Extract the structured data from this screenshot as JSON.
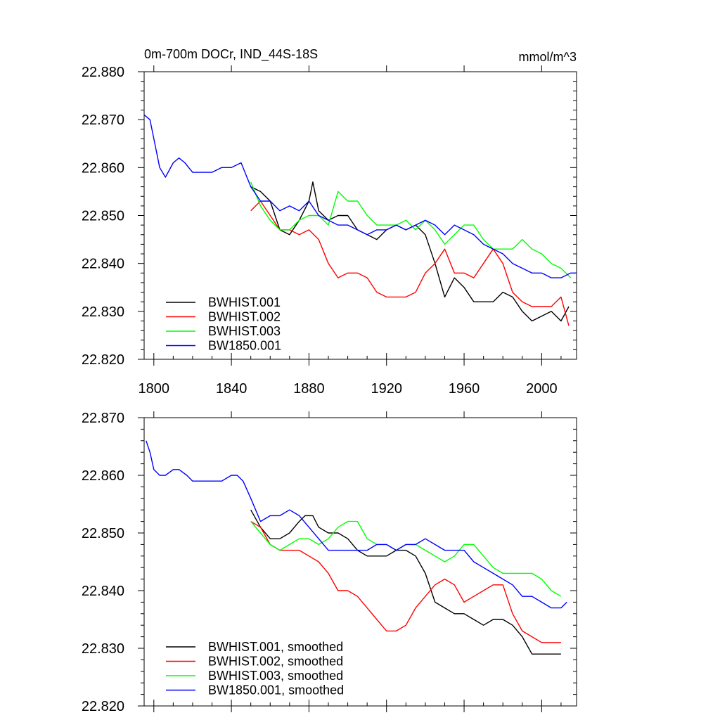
{
  "header": {
    "title": "0m-700m DOCr, IND_44S-18S",
    "units": "mmol/m^3"
  },
  "colors": {
    "BWHIST.001": "#000000",
    "BWHIST.002": "#ff0000",
    "BWHIST.003": "#00ff00",
    "BW1850.001": "#0000ff"
  },
  "chart_data": [
    {
      "type": "line",
      "title": "0m-700m DOCr, IND_44S-18S",
      "units": "mmol/m^3",
      "xlim": [
        1795,
        2018
      ],
      "ylim": [
        22.82,
        22.88
      ],
      "xticks": [
        1800,
        1840,
        1880,
        1920,
        1960,
        2000
      ],
      "xtick_labels": [
        "1800",
        "1840",
        "1880",
        "1920",
        "1960",
        "2000"
      ],
      "yticks": [
        22.82,
        22.83,
        22.84,
        22.85,
        22.86,
        22.87,
        22.88
      ],
      "ytick_labels": [
        "22.820",
        "22.830",
        "22.840",
        "22.850",
        "22.860",
        "22.870",
        "22.880"
      ],
      "legend_position": "bottom-left",
      "series": [
        {
          "name": "BWHIST.001",
          "color": "#000000",
          "x": [
            1850,
            1855,
            1860,
            1865,
            1870,
            1875,
            1880,
            1882,
            1885,
            1890,
            1895,
            1900,
            1905,
            1910,
            1915,
            1920,
            1925,
            1930,
            1935,
            1940,
            1945,
            1950,
            1955,
            1960,
            1965,
            1970,
            1975,
            1980,
            1985,
            1990,
            1995,
            2000,
            2005,
            2010,
            2014
          ],
          "y": [
            22.856,
            22.855,
            22.853,
            22.847,
            22.846,
            22.849,
            22.853,
            22.857,
            22.851,
            22.849,
            22.85,
            22.85,
            22.847,
            22.846,
            22.845,
            22.847,
            22.848,
            22.847,
            22.848,
            22.846,
            22.84,
            22.833,
            22.837,
            22.835,
            22.832,
            22.832,
            22.832,
            22.834,
            22.833,
            22.83,
            22.828,
            22.829,
            22.83,
            22.828,
            22.831
          ]
        },
        {
          "name": "BWHIST.002",
          "color": "#ff0000",
          "x": [
            1850,
            1855,
            1860,
            1865,
            1870,
            1875,
            1880,
            1885,
            1890,
            1895,
            1900,
            1905,
            1910,
            1915,
            1920,
            1925,
            1930,
            1935,
            1940,
            1945,
            1950,
            1955,
            1960,
            1965,
            1970,
            1975,
            1980,
            1985,
            1990,
            1995,
            2000,
            2005,
            2010,
            2014
          ],
          "y": [
            22.851,
            22.853,
            22.85,
            22.847,
            22.847,
            22.846,
            22.847,
            22.845,
            22.84,
            22.837,
            22.838,
            22.838,
            22.837,
            22.834,
            22.833,
            22.833,
            22.833,
            22.834,
            22.838,
            22.84,
            22.843,
            22.838,
            22.838,
            22.837,
            22.84,
            22.843,
            22.84,
            22.834,
            22.832,
            22.831,
            22.831,
            22.831,
            22.833,
            22.827
          ]
        },
        {
          "name": "BWHIST.003",
          "color": "#00ff00",
          "x": [
            1850,
            1855,
            1860,
            1865,
            1870,
            1875,
            1880,
            1885,
            1890,
            1895,
            1900,
            1905,
            1910,
            1915,
            1920,
            1925,
            1930,
            1935,
            1940,
            1945,
            1950,
            1955,
            1960,
            1965,
            1970,
            1975,
            1980,
            1985,
            1990,
            1995,
            2000,
            2005,
            2010,
            2015
          ],
          "y": [
            22.857,
            22.852,
            22.849,
            22.847,
            22.847,
            22.849,
            22.85,
            22.85,
            22.848,
            22.855,
            22.853,
            22.853,
            22.85,
            22.848,
            22.848,
            22.848,
            22.849,
            22.847,
            22.849,
            22.847,
            22.844,
            22.846,
            22.848,
            22.848,
            22.845,
            22.843,
            22.843,
            22.843,
            22.845,
            22.843,
            22.842,
            22.84,
            22.839,
            22.837
          ]
        },
        {
          "name": "BW1850.001",
          "color": "#0000ff",
          "x": [
            1795,
            1798,
            1800,
            1803,
            1806,
            1810,
            1813,
            1816,
            1820,
            1825,
            1830,
            1835,
            1840,
            1845,
            1850,
            1855,
            1860,
            1865,
            1870,
            1875,
            1880,
            1885,
            1890,
            1895,
            1900,
            1905,
            1910,
            1915,
            1920,
            1925,
            1930,
            1935,
            1940,
            1945,
            1950,
            1955,
            1960,
            1965,
            1970,
            1975,
            1980,
            1985,
            1990,
            1995,
            2000,
            2005,
            2010,
            2015,
            2018
          ],
          "y": [
            22.871,
            22.87,
            22.866,
            22.86,
            22.858,
            22.861,
            22.862,
            22.861,
            22.859,
            22.859,
            22.859,
            22.86,
            22.86,
            22.861,
            22.856,
            22.853,
            22.853,
            22.851,
            22.852,
            22.851,
            22.853,
            22.85,
            22.849,
            22.848,
            22.848,
            22.847,
            22.846,
            22.847,
            22.847,
            22.848,
            22.847,
            22.848,
            22.849,
            22.848,
            22.846,
            22.848,
            22.847,
            22.846,
            22.844,
            22.843,
            22.842,
            22.84,
            22.839,
            22.838,
            22.838,
            22.837,
            22.837,
            22.838,
            22.838
          ]
        }
      ]
    },
    {
      "type": "line",
      "title": "",
      "xlim": [
        1795,
        2018
      ],
      "ylim": [
        22.82,
        22.87
      ],
      "xticks": [
        1800,
        1840,
        1880,
        1920,
        1960,
        2000
      ],
      "yticks": [
        22.82,
        22.83,
        22.84,
        22.85,
        22.86,
        22.87
      ],
      "ytick_labels": [
        "22.820",
        "22.830",
        "22.840",
        "22.850",
        "22.860",
        "22.870"
      ],
      "legend_position": "bottom-left",
      "series": [
        {
          "name": "BWHIST.001, smoothed",
          "color": "#000000",
          "x": [
            1850,
            1855,
            1860,
            1865,
            1870,
            1875,
            1878,
            1882,
            1885,
            1890,
            1895,
            1900,
            1905,
            1910,
            1915,
            1920,
            1925,
            1930,
            1935,
            1940,
            1945,
            1950,
            1955,
            1960,
            1965,
            1970,
            1975,
            1980,
            1985,
            1990,
            1995,
            2000,
            2005,
            2010
          ],
          "y": [
            22.854,
            22.851,
            22.849,
            22.849,
            22.85,
            22.852,
            22.853,
            22.853,
            22.851,
            22.85,
            22.85,
            22.849,
            22.847,
            22.846,
            22.846,
            22.846,
            22.847,
            22.847,
            22.846,
            22.843,
            22.838,
            22.837,
            22.836,
            22.836,
            22.835,
            22.834,
            22.835,
            22.835,
            22.834,
            22.832,
            22.829,
            22.829,
            22.829,
            22.829
          ]
        },
        {
          "name": "BWHIST.002, smoothed",
          "color": "#ff0000",
          "x": [
            1850,
            1855,
            1860,
            1865,
            1870,
            1875,
            1880,
            1885,
            1890,
            1895,
            1900,
            1905,
            1910,
            1915,
            1920,
            1925,
            1930,
            1935,
            1940,
            1945,
            1950,
            1955,
            1960,
            1965,
            1970,
            1975,
            1980,
            1985,
            1990,
            1995,
            2000,
            2005,
            2010
          ],
          "y": [
            22.852,
            22.851,
            22.848,
            22.847,
            22.847,
            22.847,
            22.846,
            22.845,
            22.843,
            22.84,
            22.84,
            22.839,
            22.837,
            22.835,
            22.833,
            22.833,
            22.834,
            22.837,
            22.839,
            22.841,
            22.842,
            22.841,
            22.838,
            22.839,
            22.84,
            22.841,
            22.841,
            22.836,
            22.833,
            22.832,
            22.831,
            22.831,
            22.831
          ]
        },
        {
          "name": "BWHIST.003, smoothed",
          "color": "#00ff00",
          "x": [
            1850,
            1855,
            1860,
            1865,
            1870,
            1875,
            1880,
            1885,
            1890,
            1895,
            1900,
            1905,
            1910,
            1915,
            1920,
            1925,
            1930,
            1935,
            1940,
            1945,
            1950,
            1955,
            1960,
            1965,
            1970,
            1975,
            1980,
            1985,
            1990,
            1995,
            2000,
            2005,
            2010
          ],
          "y": [
            22.852,
            22.85,
            22.848,
            22.847,
            22.848,
            22.849,
            22.849,
            22.848,
            22.849,
            22.851,
            22.852,
            22.852,
            22.849,
            22.848,
            22.848,
            22.847,
            22.848,
            22.848,
            22.847,
            22.846,
            22.845,
            22.846,
            22.848,
            22.848,
            22.846,
            22.844,
            22.843,
            22.843,
            22.843,
            22.843,
            22.842,
            22.84,
            22.839
          ]
        },
        {
          "name": "BW1850.001, smoothed",
          "color": "#0000ff",
          "x": [
            1796,
            1798,
            1800,
            1803,
            1806,
            1810,
            1813,
            1817,
            1820,
            1825,
            1830,
            1835,
            1840,
            1843,
            1846,
            1850,
            1855,
            1860,
            1865,
            1870,
            1875,
            1880,
            1885,
            1890,
            1895,
            1900,
            1905,
            1910,
            1915,
            1920,
            1925,
            1930,
            1935,
            1940,
            1945,
            1950,
            1955,
            1960,
            1965,
            1970,
            1975,
            1980,
            1985,
            1990,
            1995,
            2000,
            2005,
            2010,
            2013
          ],
          "y": [
            22.866,
            22.864,
            22.861,
            22.86,
            22.86,
            22.861,
            22.861,
            22.86,
            22.859,
            22.859,
            22.859,
            22.859,
            22.86,
            22.86,
            22.859,
            22.856,
            22.852,
            22.853,
            22.853,
            22.854,
            22.853,
            22.851,
            22.849,
            22.847,
            22.847,
            22.847,
            22.847,
            22.847,
            22.848,
            22.848,
            22.847,
            22.848,
            22.848,
            22.849,
            22.848,
            22.847,
            22.847,
            22.847,
            22.845,
            22.844,
            22.843,
            22.842,
            22.841,
            22.839,
            22.839,
            22.838,
            22.837,
            22.837,
            22.838
          ]
        }
      ]
    }
  ]
}
